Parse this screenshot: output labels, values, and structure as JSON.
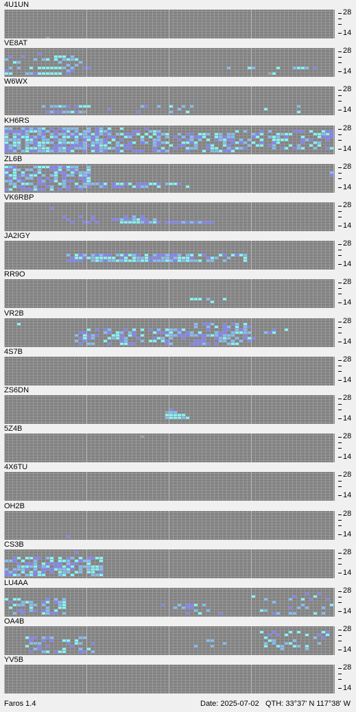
{
  "app": {
    "version_label": "Faros 1.4"
  },
  "status": {
    "date": "Date: 2025-07-02",
    "qth": "QTH: 33°37' N  117°38' W"
  },
  "axis": {
    "hi": "28",
    "lo": "14"
  },
  "colors": {
    "background": "#808080",
    "gridline": "#9a9a9a",
    "hour_line": "#c8c8c8",
    "level_1": "#8080ff",
    "level_2": "#80c0ff",
    "level_3": "#80ffff",
    "level_weak": "#a0a0a0"
  },
  "beacons": [
    {
      "callsign": "4U1UN",
      "cells": [
        [
          10,
          0,
          9,
          "w"
        ]
      ]
    },
    {
      "callsign": "VE8AT",
      "cells": [
        [
          0,
          0,
          3,
          "b"
        ],
        [
          1,
          0,
          2,
          "a"
        ],
        [
          4,
          0,
          2,
          "a"
        ],
        [
          7,
          0,
          3,
          "b"
        ],
        [
          8,
          0,
          1,
          "a"
        ],
        [
          9,
          0,
          3,
          "b"
        ],
        [
          10,
          0,
          3,
          "c"
        ],
        [
          12,
          0,
          3,
          "c"
        ],
        [
          14,
          0,
          2,
          "c"
        ],
        [
          16,
          0,
          2,
          "b"
        ],
        [
          2,
          0,
          4,
          "c"
        ],
        [
          3,
          0,
          4,
          "b"
        ],
        [
          13,
          0,
          4,
          "b"
        ],
        [
          15,
          0,
          5,
          "b"
        ],
        [
          16,
          0,
          6,
          "b"
        ],
        [
          17,
          0,
          5,
          "b"
        ],
        [
          18,
          0,
          4,
          "b"
        ],
        [
          19,
          0,
          6,
          "a"
        ],
        [
          0,
          0,
          7,
          "a"
        ],
        [
          1,
          0,
          6,
          "b"
        ],
        [
          3,
          0,
          6,
          "b"
        ],
        [
          6,
          0,
          6,
          "c"
        ],
        [
          8,
          0,
          6,
          "c"
        ],
        [
          9,
          0,
          6,
          "c"
        ],
        [
          10,
          0,
          6,
          "c"
        ],
        [
          11,
          0,
          6,
          "c"
        ],
        [
          12,
          0,
          6,
          "c"
        ],
        [
          13,
          0,
          6,
          "c"
        ],
        [
          14,
          0,
          6,
          "b"
        ],
        [
          15,
          0,
          7,
          "b"
        ],
        [
          16,
          0,
          7,
          "a"
        ],
        [
          12,
          0,
          8,
          "c"
        ],
        [
          13,
          0,
          8,
          "c"
        ],
        [
          15,
          0,
          8,
          "a"
        ],
        [
          0,
          0,
          8,
          "c"
        ],
        [
          1,
          0,
          8,
          "c"
        ],
        [
          5,
          0,
          8,
          "b"
        ],
        [
          6,
          0,
          8,
          "b"
        ],
        [
          7,
          0,
          8,
          "a"
        ],
        [
          8,
          0,
          8,
          "c"
        ],
        [
          9,
          0,
          8,
          "c"
        ],
        [
          10,
          0,
          8,
          "c"
        ],
        [
          11,
          0,
          8,
          "c"
        ],
        [
          12,
          0,
          2,
          "c"
        ],
        [
          13,
          0,
          2,
          "c"
        ],
        [
          14,
          0,
          3,
          "b"
        ],
        [
          15,
          0,
          3,
          "c"
        ],
        [
          16,
          0,
          3,
          "b"
        ],
        [
          17,
          0,
          3,
          "c"
        ],
        [
          20,
          0,
          6,
          "a"
        ],
        [
          54,
          0,
          6,
          "b"
        ],
        [
          59,
          0,
          6,
          "c"
        ],
        [
          60,
          0,
          6,
          "b"
        ],
        [
          65,
          0,
          8,
          "c"
        ],
        [
          66,
          0,
          6,
          "c"
        ],
        [
          70,
          0,
          6,
          "b"
        ],
        [
          71,
          0,
          6,
          "c"
        ],
        [
          72,
          0,
          6,
          "c"
        ],
        [
          73,
          0,
          6,
          "b"
        ],
        [
          75,
          0,
          6,
          "a"
        ],
        [
          64,
          0,
          8,
          "w"
        ]
      ]
    },
    {
      "callsign": "W6WX",
      "cells": [
        [
          9,
          0,
          6,
          "b"
        ],
        [
          11,
          0,
          6,
          "b"
        ],
        [
          12,
          0,
          6,
          "b"
        ],
        [
          13,
          0,
          6,
          "c"
        ],
        [
          14,
          0,
          6,
          "b"
        ],
        [
          15,
          0,
          6,
          "a"
        ],
        [
          17,
          0,
          6,
          "a"
        ],
        [
          18,
          0,
          6,
          "c"
        ],
        [
          19,
          0,
          6,
          "c"
        ],
        [
          20,
          0,
          6,
          "c"
        ],
        [
          11,
          0,
          8,
          "b"
        ],
        [
          12,
          0,
          8,
          "a"
        ],
        [
          13,
          0,
          8,
          "a"
        ],
        [
          14,
          0,
          8,
          "b"
        ],
        [
          15,
          0,
          8,
          "b"
        ],
        [
          16,
          0,
          8,
          "c"
        ],
        [
          17,
          0,
          8,
          "a"
        ],
        [
          18,
          0,
          8,
          "b"
        ],
        [
          10,
          0,
          8,
          "a"
        ],
        [
          25,
          0,
          7,
          "a"
        ],
        [
          33,
          0,
          6,
          "b"
        ],
        [
          34,
          0,
          6,
          "a"
        ],
        [
          37,
          0,
          6,
          "b"
        ],
        [
          40,
          0,
          6,
          "c"
        ],
        [
          42,
          0,
          7,
          "b"
        ],
        [
          43,
          0,
          6,
          "b"
        ],
        [
          45,
          0,
          6,
          "b"
        ],
        [
          32,
          0,
          8,
          "a"
        ],
        [
          40,
          0,
          8,
          "b"
        ],
        [
          44,
          0,
          8,
          "c"
        ],
        [
          63,
          0,
          7,
          "c"
        ],
        [
          71,
          0,
          6,
          "b"
        ],
        [
          71,
          0,
          8,
          "c"
        ],
        [
          19,
          0,
          8,
          "w"
        ]
      ]
    },
    {
      "callsign": "KH6RS",
      "cells": []
    },
    {
      "callsign": "ZL6B",
      "cells": []
    },
    {
      "callsign": "VK6RBP",
      "cells": [
        [
          11,
          0,
          1,
          "a"
        ],
        [
          14,
          0,
          4,
          "a"
        ],
        [
          15,
          0,
          5,
          "a"
        ],
        [
          16,
          0,
          6,
          "a"
        ],
        [
          18,
          0,
          4,
          "a"
        ],
        [
          19,
          0,
          6,
          "a"
        ],
        [
          21,
          0,
          5,
          "a"
        ],
        [
          21,
          0,
          4,
          "a"
        ],
        [
          20,
          0,
          6,
          "a"
        ],
        [
          22,
          0,
          6,
          "a"
        ],
        [
          26,
          0,
          5,
          "a"
        ],
        [
          27,
          0,
          5,
          "a"
        ],
        [
          28,
          0,
          5,
          "b"
        ],
        [
          29,
          0,
          5,
          "a"
        ],
        [
          30,
          0,
          5,
          "a"
        ],
        [
          31,
          0,
          5,
          "b"
        ],
        [
          32,
          0,
          5,
          "c"
        ],
        [
          33,
          0,
          5,
          "a"
        ],
        [
          29,
          0,
          4,
          "a"
        ],
        [
          31,
          0,
          4,
          "b"
        ],
        [
          28,
          0,
          6,
          "c"
        ],
        [
          29,
          0,
          6,
          "c"
        ],
        [
          30,
          0,
          6,
          "c"
        ],
        [
          31,
          0,
          6,
          "c"
        ],
        [
          32,
          0,
          6,
          "c"
        ],
        [
          33,
          0,
          6,
          "b"
        ],
        [
          34,
          0,
          6,
          "a"
        ],
        [
          35,
          0,
          6,
          "b"
        ],
        [
          36,
          0,
          6,
          "c"
        ],
        [
          37,
          0,
          6,
          "a"
        ],
        [
          39,
          0,
          6,
          "a"
        ],
        [
          40,
          0,
          6,
          "a"
        ],
        [
          41,
          0,
          6,
          "a"
        ],
        [
          42,
          0,
          6,
          "a"
        ],
        [
          43,
          0,
          6,
          "b"
        ],
        [
          44,
          0,
          6,
          "a"
        ],
        [
          45,
          0,
          6,
          "b"
        ],
        [
          46,
          0,
          6,
          "a"
        ],
        [
          47,
          0,
          6,
          "b"
        ],
        [
          48,
          0,
          6,
          "a"
        ],
        [
          49,
          0,
          6,
          "a"
        ],
        [
          50,
          0,
          6,
          "a"
        ],
        [
          34,
          0,
          5,
          "a"
        ],
        [
          33,
          0,
          4,
          "a"
        ],
        [
          36,
          0,
          5,
          "b"
        ]
      ]
    },
    {
      "callsign": "JA2IGY",
      "cells": []
    },
    {
      "callsign": "RR9O",
      "cells": [
        [
          45,
          0,
          6,
          "c"
        ],
        [
          46,
          0,
          6,
          "c"
        ],
        [
          47,
          0,
          6,
          "c"
        ],
        [
          49,
          0,
          6,
          "b"
        ],
        [
          50,
          0,
          7,
          "c"
        ],
        [
          53,
          0,
          6,
          "c"
        ]
      ]
    },
    {
      "callsign": "VR2B",
      "cells": []
    },
    {
      "callsign": "4S7B",
      "cells": []
    },
    {
      "callsign": "ZS6DN",
      "cells": [
        [
          40,
          0,
          5,
          "b"
        ],
        [
          41,
          0,
          5,
          "b"
        ],
        [
          39,
          0,
          6,
          "c"
        ],
        [
          40,
          0,
          6,
          "c"
        ],
        [
          41,
          0,
          6,
          "c"
        ],
        [
          42,
          0,
          6,
          "c"
        ],
        [
          43,
          0,
          6,
          "c"
        ],
        [
          39,
          0,
          7,
          "b"
        ],
        [
          40,
          0,
          7,
          "c"
        ],
        [
          41,
          0,
          7,
          "c"
        ],
        [
          42,
          0,
          7,
          "c"
        ],
        [
          43,
          0,
          7,
          "b"
        ],
        [
          44,
          0,
          7,
          "c"
        ],
        [
          40,
          0,
          4,
          "a"
        ],
        [
          39,
          0,
          5,
          "w"
        ]
      ]
    },
    {
      "callsign": "5Z4B",
      "cells": [
        [
          33,
          0,
          0,
          "w"
        ]
      ]
    },
    {
      "callsign": "4X6TU",
      "cells": []
    },
    {
      "callsign": "OH2B",
      "cells": [
        [
          15,
          0,
          8,
          "a"
        ]
      ]
    },
    {
      "callsign": "CS3B",
      "cells": []
    },
    {
      "callsign": "LU4AA",
      "cells": []
    },
    {
      "callsign": "OA4B",
      "cells": []
    },
    {
      "callsign": "YV5B",
      "cells": []
    }
  ]
}
